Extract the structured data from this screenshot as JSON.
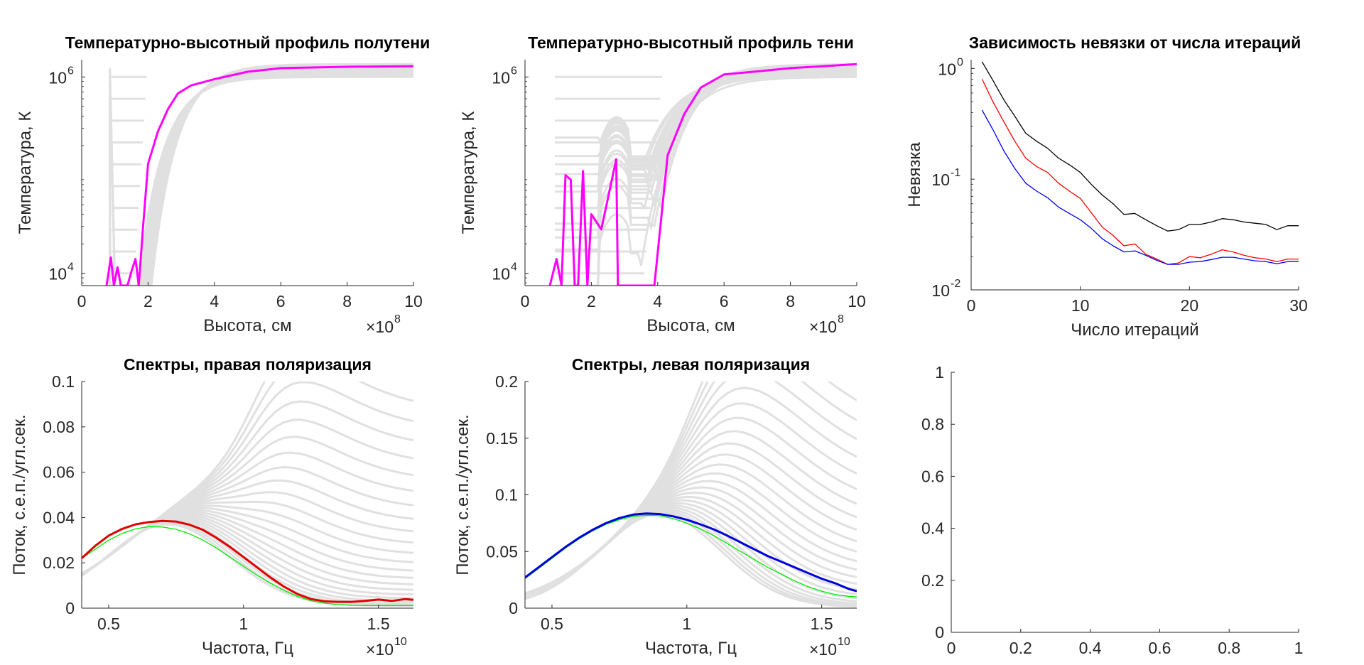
{
  "charts": [
    {
      "type": "line",
      "title": "Температурно-высотный профиль полутени",
      "xlabel": "Высота, см",
      "ylabel": "Температура, К",
      "xlim": [
        0,
        10
      ],
      "ylim": [
        7500,
        1500000
      ],
      "yscale": "log",
      "x_multiplier": "×10",
      "x_multiplier_exp": "8",
      "xticks": [
        0,
        2,
        4,
        6,
        8,
        10
      ],
      "xtick_labels": [
        "0",
        "2",
        "4",
        "6",
        "8",
        "10"
      ],
      "yticks": [
        10000,
        1000000
      ],
      "ytick_labels": [
        {
          "base": "10",
          "exp": "4"
        },
        {
          "base": "10",
          "exp": "6"
        }
      ],
      "background": {
        "color": "#e0e0e0",
        "generator": "penumbra",
        "count": 24
      },
      "series": [
        {
          "color": "#ff00ff",
          "width": 3,
          "x": [
            0.75,
            0.88,
            0.97,
            1.08,
            1.18,
            1.25,
            1.38,
            1.5,
            1.62,
            1.72,
            1.85,
            2.0,
            2.3,
            2.6,
            2.9,
            3.3,
            4.0,
            5.0,
            6.0,
            8.0,
            10.0
          ],
          "y": [
            7500,
            14500,
            7500,
            11500,
            7500,
            7500,
            7500,
            10500,
            14000,
            7500,
            30000,
            130000,
            280000,
            470000,
            680000,
            820000,
            950000,
            1130000,
            1230000,
            1270000,
            1290000
          ]
        }
      ]
    },
    {
      "type": "line",
      "title": "Температурно-высотный профиль тени",
      "xlabel": "Высота, см",
      "ylabel": "Температура, К",
      "xlim": [
        0,
        10
      ],
      "ylim": [
        7500,
        1500000
      ],
      "yscale": "log",
      "x_multiplier": "×10",
      "x_multiplier_exp": "8",
      "xticks": [
        0,
        2,
        4,
        6,
        8,
        10
      ],
      "xtick_labels": [
        "0",
        "2",
        "4",
        "6",
        "8",
        "10"
      ],
      "yticks": [
        10000,
        1000000
      ],
      "ytick_labels": [
        {
          "base": "10",
          "exp": "4"
        },
        {
          "base": "10",
          "exp": "6"
        }
      ],
      "background": {
        "color": "#e0e0e0",
        "generator": "umbra",
        "count": 24
      },
      "series": [
        {
          "color": "#ff00ff",
          "width": 3,
          "x": [
            0.75,
            0.95,
            1.1,
            1.22,
            1.38,
            1.5,
            1.6,
            1.75,
            1.88,
            2.0,
            2.3,
            2.75,
            2.8,
            3.0,
            3.5,
            3.9,
            4.3,
            4.8,
            5.3,
            6.0,
            7.0,
            8.0,
            9.0,
            10.0
          ],
          "y": [
            7500,
            14000,
            7500,
            100000,
            90000,
            7500,
            7500,
            110000,
            7500,
            40000,
            28000,
            145000,
            7500,
            7500,
            7500,
            7500,
            160000,
            420000,
            780000,
            1060000,
            1140000,
            1230000,
            1290000,
            1350000
          ]
        }
      ]
    },
    {
      "type": "line",
      "title": "Зависимость невязки от числа итераций",
      "xlabel": "Число итераций",
      "ylabel": "Невязка",
      "xlim": [
        0,
        30
      ],
      "ylim": [
        0.01,
        1.2
      ],
      "yscale": "log",
      "xticks": [
        0,
        10,
        20,
        30
      ],
      "xtick_labels": [
        "0",
        "10",
        "20",
        "30"
      ],
      "yticks": [
        0.01,
        0.1,
        1
      ],
      "ytick_labels": [
        {
          "base": "10",
          "exp": "-2"
        },
        {
          "base": "10",
          "exp": "-1"
        },
        {
          "base": "10",
          "exp": "0"
        }
      ],
      "series": [
        {
          "color": "#000000",
          "width": 1.3,
          "x": [
            1,
            2,
            3,
            4,
            5,
            6,
            7,
            8,
            9,
            10,
            11,
            12,
            13,
            14,
            15,
            16,
            17,
            18,
            19,
            20,
            21,
            22,
            23,
            24,
            25,
            26,
            27,
            28,
            29,
            30
          ],
          "y": [
            1.15,
            0.78,
            0.52,
            0.37,
            0.26,
            0.22,
            0.19,
            0.155,
            0.135,
            0.115,
            0.09,
            0.072,
            0.06,
            0.048,
            0.049,
            0.043,
            0.038,
            0.034,
            0.035,
            0.039,
            0.039,
            0.041,
            0.044,
            0.043,
            0.041,
            0.04,
            0.039,
            0.035,
            0.038,
            0.038
          ]
        },
        {
          "color": "#ff0000",
          "width": 1.3,
          "x": [
            1,
            2,
            3,
            4,
            5,
            6,
            7,
            8,
            9,
            10,
            11,
            12,
            13,
            14,
            15,
            16,
            17,
            18,
            19,
            20,
            21,
            22,
            23,
            24,
            25,
            26,
            27,
            28,
            29,
            30
          ],
          "y": [
            0.8,
            0.5,
            0.33,
            0.22,
            0.155,
            0.13,
            0.115,
            0.092,
            0.078,
            0.067,
            0.05,
            0.037,
            0.031,
            0.025,
            0.026,
            0.021,
            0.019,
            0.017,
            0.0175,
            0.02,
            0.0195,
            0.021,
            0.023,
            0.022,
            0.0205,
            0.0195,
            0.019,
            0.018,
            0.019,
            0.019
          ]
        },
        {
          "color": "#0000ff",
          "width": 1.3,
          "x": [
            1,
            2,
            3,
            4,
            5,
            6,
            7,
            8,
            9,
            10,
            11,
            12,
            13,
            14,
            15,
            16,
            17,
            18,
            19,
            20,
            21,
            22,
            23,
            24,
            25,
            26,
            27,
            28,
            29,
            30
          ],
          "y": [
            0.42,
            0.28,
            0.18,
            0.125,
            0.092,
            0.078,
            0.068,
            0.056,
            0.049,
            0.043,
            0.036,
            0.029,
            0.025,
            0.022,
            0.0225,
            0.0205,
            0.0185,
            0.017,
            0.017,
            0.0178,
            0.018,
            0.0188,
            0.0197,
            0.0197,
            0.019,
            0.0183,
            0.018,
            0.0172,
            0.018,
            0.0181
          ]
        }
      ]
    },
    {
      "type": "line",
      "title": "Спектры, правая поляризация",
      "xlabel": "Частота, Гц",
      "ylabel": "Поток, с.е.п./угл.сек.",
      "xlim": [
        0.4,
        1.63
      ],
      "ylim": [
        0,
        0.1
      ],
      "yscale": "linear",
      "x_multiplier": "×10",
      "x_multiplier_exp": "10",
      "xticks": [
        0.5,
        1,
        1.5
      ],
      "xtick_labels": [
        "0.5",
        "1",
        "1.5"
      ],
      "yticks": [
        0,
        0.02,
        0.04,
        0.06,
        0.08,
        0.1
      ],
      "ytick_labels": [
        "0",
        "0.02",
        "0.04",
        "0.06",
        "0.08",
        "0.1"
      ],
      "background": {
        "color": "#e0e0e0",
        "generator": "spectra_right",
        "count": 24
      },
      "series": [
        {
          "color": "#00ee00",
          "width": 1.3,
          "x": [
            0.4,
            0.45,
            0.5,
            0.55,
            0.6,
            0.65,
            0.7,
            0.75,
            0.8,
            0.85,
            0.9,
            0.95,
            1.0,
            1.05,
            1.1,
            1.15,
            1.2,
            1.25,
            1.3,
            1.35,
            1.4,
            1.45,
            1.5,
            1.55,
            1.6,
            1.63
          ],
          "y": [
            0.022,
            0.026,
            0.03,
            0.033,
            0.035,
            0.036,
            0.0358,
            0.0348,
            0.0328,
            0.03,
            0.0265,
            0.0225,
            0.0185,
            0.0145,
            0.011,
            0.0078,
            0.0052,
            0.0033,
            0.0022,
            0.0016,
            0.0013,
            0.0012,
            0.0012,
            0.0012,
            0.0012,
            0.0012
          ]
        },
        {
          "color": "#e00000",
          "width": 3,
          "x": [
            0.4,
            0.45,
            0.5,
            0.55,
            0.6,
            0.65,
            0.7,
            0.75,
            0.8,
            0.85,
            0.9,
            0.95,
            1.0,
            1.05,
            1.1,
            1.15,
            1.2,
            1.25,
            1.3,
            1.35,
            1.4,
            1.45,
            1.5,
            1.55,
            1.6,
            1.63
          ],
          "y": [
            0.022,
            0.0275,
            0.032,
            0.035,
            0.037,
            0.038,
            0.0385,
            0.0382,
            0.0368,
            0.0345,
            0.031,
            0.027,
            0.0225,
            0.018,
            0.0135,
            0.0095,
            0.0062,
            0.004,
            0.003,
            0.0028,
            0.0028,
            0.0032,
            0.0038,
            0.0032,
            0.004,
            0.0037
          ]
        }
      ]
    },
    {
      "type": "line",
      "title": "Спектры, левая поляризация",
      "xlabel": "Частота, Гц",
      "ylabel": "Поток, с.е.п./угл.сек.",
      "xlim": [
        0.4,
        1.63
      ],
      "ylim": [
        0,
        0.2
      ],
      "yscale": "linear",
      "x_multiplier": "×10",
      "x_multiplier_exp": "10",
      "xticks": [
        0.5,
        1,
        1.5
      ],
      "xtick_labels": [
        "0.5",
        "1",
        "1.5"
      ],
      "yticks": [
        0,
        0.05,
        0.1,
        0.15,
        0.2
      ],
      "ytick_labels": [
        "0",
        "0.05",
        "0.1",
        "0.15",
        "0.2"
      ],
      "background": {
        "color": "#e0e0e0",
        "generator": "spectra_left",
        "count": 24
      },
      "series": [
        {
          "color": "#00ee00",
          "width": 1.3,
          "x": [
            0.4,
            0.45,
            0.5,
            0.55,
            0.6,
            0.65,
            0.7,
            0.75,
            0.8,
            0.85,
            0.9,
            0.95,
            1.0,
            1.05,
            1.1,
            1.15,
            1.2,
            1.25,
            1.3,
            1.35,
            1.4,
            1.45,
            1.5,
            1.55,
            1.6,
            1.63
          ],
          "y": [
            0.026,
            0.035,
            0.044,
            0.053,
            0.061,
            0.068,
            0.074,
            0.078,
            0.081,
            0.082,
            0.0815,
            0.079,
            0.075,
            0.07,
            0.064,
            0.057,
            0.05,
            0.043,
            0.036,
            0.03,
            0.024,
            0.019,
            0.015,
            0.012,
            0.0105,
            0.01
          ]
        },
        {
          "color": "#0000dd",
          "width": 3,
          "x": [
            0.4,
            0.45,
            0.5,
            0.55,
            0.6,
            0.65,
            0.7,
            0.75,
            0.8,
            0.85,
            0.9,
            0.95,
            1.0,
            1.05,
            1.1,
            1.15,
            1.2,
            1.25,
            1.3,
            1.35,
            1.4,
            1.45,
            1.5,
            1.55,
            1.6,
            1.63
          ],
          "y": [
            0.027,
            0.036,
            0.045,
            0.054,
            0.062,
            0.069,
            0.075,
            0.0795,
            0.0825,
            0.0835,
            0.083,
            0.081,
            0.078,
            0.074,
            0.0695,
            0.064,
            0.058,
            0.052,
            0.046,
            0.041,
            0.036,
            0.031,
            0.026,
            0.022,
            0.017,
            0.015
          ]
        }
      ]
    },
    {
      "type": "line",
      "title": "",
      "xlabel": "",
      "ylabel": "",
      "xlim": [
        0,
        1
      ],
      "ylim": [
        0,
        1
      ],
      "yscale": "linear",
      "xticks": [
        0,
        0.2,
        0.4,
        0.6,
        0.8,
        1
      ],
      "xtick_labels": [
        "0",
        "0.2",
        "0.4",
        "0.6",
        "0.8",
        "1"
      ],
      "yticks": [
        0,
        0.2,
        0.4,
        0.6,
        0.8,
        1
      ],
      "ytick_labels": [
        "0",
        "0.2",
        "0.4",
        "0.6",
        "0.8",
        "1"
      ],
      "series": []
    }
  ]
}
